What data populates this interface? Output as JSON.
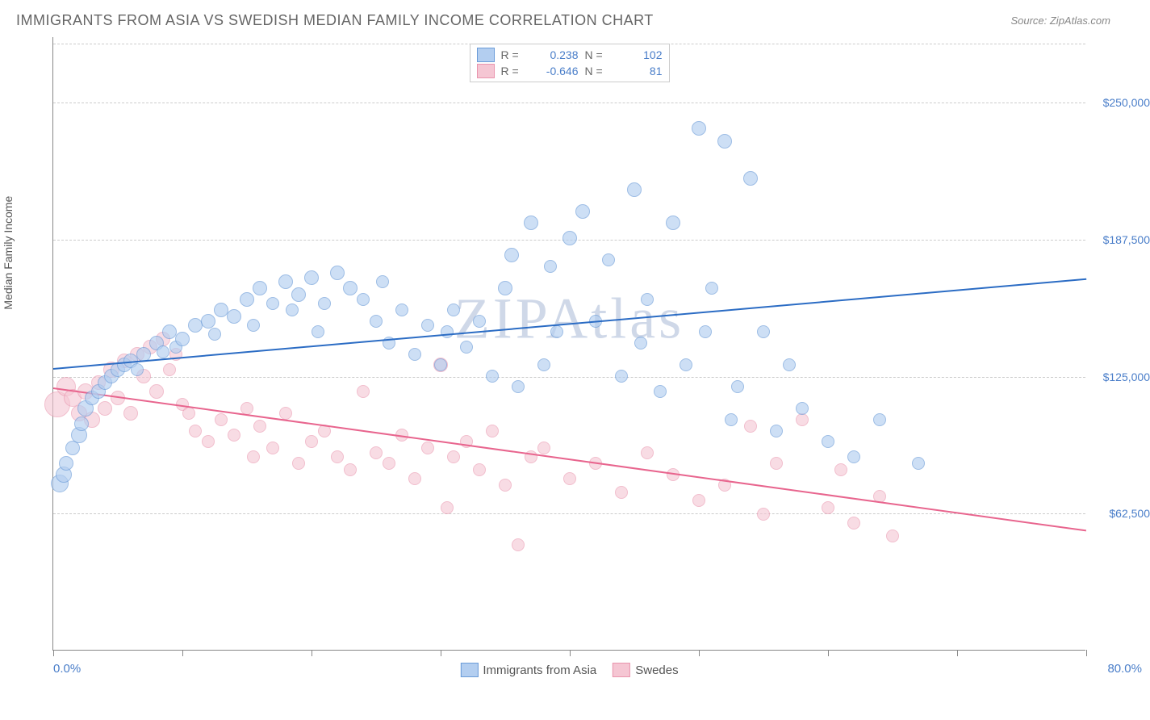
{
  "title": "IMMIGRANTS FROM ASIA VS SWEDISH MEDIAN FAMILY INCOME CORRELATION CHART",
  "source_label": "Source: ",
  "source_name": "ZipAtlas.com",
  "watermark": "ZIPAtlas",
  "yaxis_label": "Median Family Income",
  "xaxis": {
    "min_pct": 0.0,
    "max_pct": 80.0,
    "min_label": "0.0%",
    "max_label": "80.0%",
    "tick_positions_pct": [
      0,
      10,
      20,
      30,
      40,
      50,
      60,
      70,
      80
    ]
  },
  "yaxis": {
    "min": 0,
    "max": 280000,
    "ticks": [
      {
        "v": 62500,
        "label": "$62,500"
      },
      {
        "v": 125000,
        "label": "$125,000"
      },
      {
        "v": 187500,
        "label": "$187,500"
      },
      {
        "v": 250000,
        "label": "$250,000"
      }
    ]
  },
  "series": {
    "asia": {
      "label": "Immigrants from Asia",
      "fill_color": "#b3cef0",
      "stroke_color": "#6a9bd8",
      "line_color": "#2b6cc4",
      "opacity": 0.65,
      "R": "0.238",
      "N": "102",
      "trend": {
        "x1": 0,
        "y1": 129000,
        "x2": 80,
        "y2": 170000
      },
      "points": [
        {
          "x": 0.5,
          "y": 76000,
          "r": 11
        },
        {
          "x": 0.8,
          "y": 80000,
          "r": 10
        },
        {
          "x": 1.0,
          "y": 85000,
          "r": 9
        },
        {
          "x": 1.5,
          "y": 92000,
          "r": 9
        },
        {
          "x": 2.0,
          "y": 98000,
          "r": 10
        },
        {
          "x": 2.2,
          "y": 103000,
          "r": 9
        },
        {
          "x": 2.5,
          "y": 110000,
          "r": 10
        },
        {
          "x": 3.0,
          "y": 115000,
          "r": 9
        },
        {
          "x": 3.5,
          "y": 118000,
          "r": 9
        },
        {
          "x": 4.0,
          "y": 122000,
          "r": 9
        },
        {
          "x": 4.5,
          "y": 125000,
          "r": 9
        },
        {
          "x": 5.0,
          "y": 128000,
          "r": 9
        },
        {
          "x": 5.5,
          "y": 130000,
          "r": 9
        },
        {
          "x": 6.0,
          "y": 132000,
          "r": 9
        },
        {
          "x": 6.5,
          "y": 128000,
          "r": 8
        },
        {
          "x": 7.0,
          "y": 135000,
          "r": 9
        },
        {
          "x": 8.0,
          "y": 140000,
          "r": 9
        },
        {
          "x": 8.5,
          "y": 136000,
          "r": 8
        },
        {
          "x": 9.0,
          "y": 145000,
          "r": 9
        },
        {
          "x": 9.5,
          "y": 138000,
          "r": 8
        },
        {
          "x": 10.0,
          "y": 142000,
          "r": 9
        },
        {
          "x": 11.0,
          "y": 148000,
          "r": 9
        },
        {
          "x": 12.0,
          "y": 150000,
          "r": 9
        },
        {
          "x": 12.5,
          "y": 144000,
          "r": 8
        },
        {
          "x": 13.0,
          "y": 155000,
          "r": 9
        },
        {
          "x": 14.0,
          "y": 152000,
          "r": 9
        },
        {
          "x": 15.0,
          "y": 160000,
          "r": 9
        },
        {
          "x": 15.5,
          "y": 148000,
          "r": 8
        },
        {
          "x": 16.0,
          "y": 165000,
          "r": 9
        },
        {
          "x": 17.0,
          "y": 158000,
          "r": 8
        },
        {
          "x": 18.0,
          "y": 168000,
          "r": 9
        },
        {
          "x": 18.5,
          "y": 155000,
          "r": 8
        },
        {
          "x": 19.0,
          "y": 162000,
          "r": 9
        },
        {
          "x": 20.0,
          "y": 170000,
          "r": 9
        },
        {
          "x": 20.5,
          "y": 145000,
          "r": 8
        },
        {
          "x": 21.0,
          "y": 158000,
          "r": 8
        },
        {
          "x": 22.0,
          "y": 172000,
          "r": 9
        },
        {
          "x": 23.0,
          "y": 165000,
          "r": 9
        },
        {
          "x": 24.0,
          "y": 160000,
          "r": 8
        },
        {
          "x": 25.0,
          "y": 150000,
          "r": 8
        },
        {
          "x": 25.5,
          "y": 168000,
          "r": 8
        },
        {
          "x": 26.0,
          "y": 140000,
          "r": 8
        },
        {
          "x": 27.0,
          "y": 155000,
          "r": 8
        },
        {
          "x": 28.0,
          "y": 135000,
          "r": 8
        },
        {
          "x": 29.0,
          "y": 148000,
          "r": 8
        },
        {
          "x": 30.0,
          "y": 130000,
          "r": 8
        },
        {
          "x": 30.5,
          "y": 145000,
          "r": 8
        },
        {
          "x": 31.0,
          "y": 155000,
          "r": 8
        },
        {
          "x": 32.0,
          "y": 138000,
          "r": 8
        },
        {
          "x": 33.0,
          "y": 150000,
          "r": 8
        },
        {
          "x": 34.0,
          "y": 125000,
          "r": 8
        },
        {
          "x": 35.0,
          "y": 165000,
          "r": 9
        },
        {
          "x": 35.5,
          "y": 180000,
          "r": 9
        },
        {
          "x": 36.0,
          "y": 120000,
          "r": 8
        },
        {
          "x": 37.0,
          "y": 195000,
          "r": 9
        },
        {
          "x": 38.0,
          "y": 130000,
          "r": 8
        },
        {
          "x": 38.5,
          "y": 175000,
          "r": 8
        },
        {
          "x": 39.0,
          "y": 145000,
          "r": 8
        },
        {
          "x": 40.0,
          "y": 188000,
          "r": 9
        },
        {
          "x": 41.0,
          "y": 200000,
          "r": 9
        },
        {
          "x": 42.0,
          "y": 150000,
          "r": 8
        },
        {
          "x": 43.0,
          "y": 178000,
          "r": 8
        },
        {
          "x": 44.0,
          "y": 125000,
          "r": 8
        },
        {
          "x": 45.0,
          "y": 210000,
          "r": 9
        },
        {
          "x": 45.5,
          "y": 140000,
          "r": 8
        },
        {
          "x": 46.0,
          "y": 160000,
          "r": 8
        },
        {
          "x": 47.0,
          "y": 118000,
          "r": 8
        },
        {
          "x": 48.0,
          "y": 195000,
          "r": 9
        },
        {
          "x": 49.0,
          "y": 130000,
          "r": 8
        },
        {
          "x": 50.0,
          "y": 238000,
          "r": 9
        },
        {
          "x": 50.5,
          "y": 145000,
          "r": 8
        },
        {
          "x": 51.0,
          "y": 165000,
          "r": 8
        },
        {
          "x": 52.0,
          "y": 232000,
          "r": 9
        },
        {
          "x": 52.5,
          "y": 105000,
          "r": 8
        },
        {
          "x": 53.0,
          "y": 120000,
          "r": 8
        },
        {
          "x": 54.0,
          "y": 215000,
          "r": 9
        },
        {
          "x": 55.0,
          "y": 145000,
          "r": 8
        },
        {
          "x": 56.0,
          "y": 100000,
          "r": 8
        },
        {
          "x": 57.0,
          "y": 130000,
          "r": 8
        },
        {
          "x": 58.0,
          "y": 110000,
          "r": 8
        },
        {
          "x": 60.0,
          "y": 95000,
          "r": 8
        },
        {
          "x": 62.0,
          "y": 88000,
          "r": 8
        },
        {
          "x": 64.0,
          "y": 105000,
          "r": 8
        },
        {
          "x": 67.0,
          "y": 85000,
          "r": 8
        }
      ]
    },
    "swedes": {
      "label": "Swedes",
      "fill_color": "#f5c6d3",
      "stroke_color": "#e994ad",
      "line_color": "#e8658e",
      "opacity": 0.6,
      "R": "-0.646",
      "N": "81",
      "trend": {
        "x1": 0,
        "y1": 120000,
        "x2": 80,
        "y2": 55000
      },
      "points": [
        {
          "x": 0.3,
          "y": 112000,
          "r": 16
        },
        {
          "x": 1.0,
          "y": 120000,
          "r": 12
        },
        {
          "x": 1.5,
          "y": 115000,
          "r": 11
        },
        {
          "x": 2.0,
          "y": 108000,
          "r": 10
        },
        {
          "x": 2.5,
          "y": 118000,
          "r": 10
        },
        {
          "x": 3.0,
          "y": 105000,
          "r": 10
        },
        {
          "x": 3.5,
          "y": 122000,
          "r": 9
        },
        {
          "x": 4.0,
          "y": 110000,
          "r": 9
        },
        {
          "x": 4.5,
          "y": 128000,
          "r": 10
        },
        {
          "x": 5.0,
          "y": 115000,
          "r": 9
        },
        {
          "x": 5.5,
          "y": 132000,
          "r": 9
        },
        {
          "x": 6.0,
          "y": 108000,
          "r": 9
        },
        {
          "x": 6.5,
          "y": 135000,
          "r": 9
        },
        {
          "x": 7.0,
          "y": 125000,
          "r": 9
        },
        {
          "x": 7.5,
          "y": 138000,
          "r": 9
        },
        {
          "x": 8.0,
          "y": 118000,
          "r": 9
        },
        {
          "x": 8.5,
          "y": 142000,
          "r": 9
        },
        {
          "x": 9.0,
          "y": 128000,
          "r": 8
        },
        {
          "x": 9.5,
          "y": 135000,
          "r": 8
        },
        {
          "x": 10.0,
          "y": 112000,
          "r": 8
        },
        {
          "x": 10.5,
          "y": 108000,
          "r": 8
        },
        {
          "x": 11.0,
          "y": 100000,
          "r": 8
        },
        {
          "x": 12.0,
          "y": 95000,
          "r": 8
        },
        {
          "x": 13.0,
          "y": 105000,
          "r": 8
        },
        {
          "x": 14.0,
          "y": 98000,
          "r": 8
        },
        {
          "x": 15.0,
          "y": 110000,
          "r": 8
        },
        {
          "x": 15.5,
          "y": 88000,
          "r": 8
        },
        {
          "x": 16.0,
          "y": 102000,
          "r": 8
        },
        {
          "x": 17.0,
          "y": 92000,
          "r": 8
        },
        {
          "x": 18.0,
          "y": 108000,
          "r": 8
        },
        {
          "x": 19.0,
          "y": 85000,
          "r": 8
        },
        {
          "x": 20.0,
          "y": 95000,
          "r": 8
        },
        {
          "x": 21.0,
          "y": 100000,
          "r": 8
        },
        {
          "x": 22.0,
          "y": 88000,
          "r": 8
        },
        {
          "x": 23.0,
          "y": 82000,
          "r": 8
        },
        {
          "x": 24.0,
          "y": 118000,
          "r": 8
        },
        {
          "x": 25.0,
          "y": 90000,
          "r": 8
        },
        {
          "x": 26.0,
          "y": 85000,
          "r": 8
        },
        {
          "x": 27.0,
          "y": 98000,
          "r": 8
        },
        {
          "x": 28.0,
          "y": 78000,
          "r": 8
        },
        {
          "x": 29.0,
          "y": 92000,
          "r": 8
        },
        {
          "x": 30.0,
          "y": 130000,
          "r": 9
        },
        {
          "x": 30.5,
          "y": 65000,
          "r": 8
        },
        {
          "x": 31.0,
          "y": 88000,
          "r": 8
        },
        {
          "x": 32.0,
          "y": 95000,
          "r": 8
        },
        {
          "x": 33.0,
          "y": 82000,
          "r": 8
        },
        {
          "x": 34.0,
          "y": 100000,
          "r": 8
        },
        {
          "x": 35.0,
          "y": 75000,
          "r": 8
        },
        {
          "x": 36.0,
          "y": 48000,
          "r": 8
        },
        {
          "x": 37.0,
          "y": 88000,
          "r": 8
        },
        {
          "x": 38.0,
          "y": 92000,
          "r": 8
        },
        {
          "x": 40.0,
          "y": 78000,
          "r": 8
        },
        {
          "x": 42.0,
          "y": 85000,
          "r": 8
        },
        {
          "x": 44.0,
          "y": 72000,
          "r": 8
        },
        {
          "x": 46.0,
          "y": 90000,
          "r": 8
        },
        {
          "x": 48.0,
          "y": 80000,
          "r": 8
        },
        {
          "x": 50.0,
          "y": 68000,
          "r": 8
        },
        {
          "x": 52.0,
          "y": 75000,
          "r": 8
        },
        {
          "x": 54.0,
          "y": 102000,
          "r": 8
        },
        {
          "x": 55.0,
          "y": 62000,
          "r": 8
        },
        {
          "x": 56.0,
          "y": 85000,
          "r": 8
        },
        {
          "x": 58.0,
          "y": 105000,
          "r": 8
        },
        {
          "x": 60.0,
          "y": 65000,
          "r": 8
        },
        {
          "x": 61.0,
          "y": 82000,
          "r": 8
        },
        {
          "x": 62.0,
          "y": 58000,
          "r": 8
        },
        {
          "x": 64.0,
          "y": 70000,
          "r": 8
        },
        {
          "x": 65.0,
          "y": 52000,
          "r": 8
        }
      ]
    }
  },
  "legend_labels": {
    "R": "R =",
    "N": "N ="
  }
}
